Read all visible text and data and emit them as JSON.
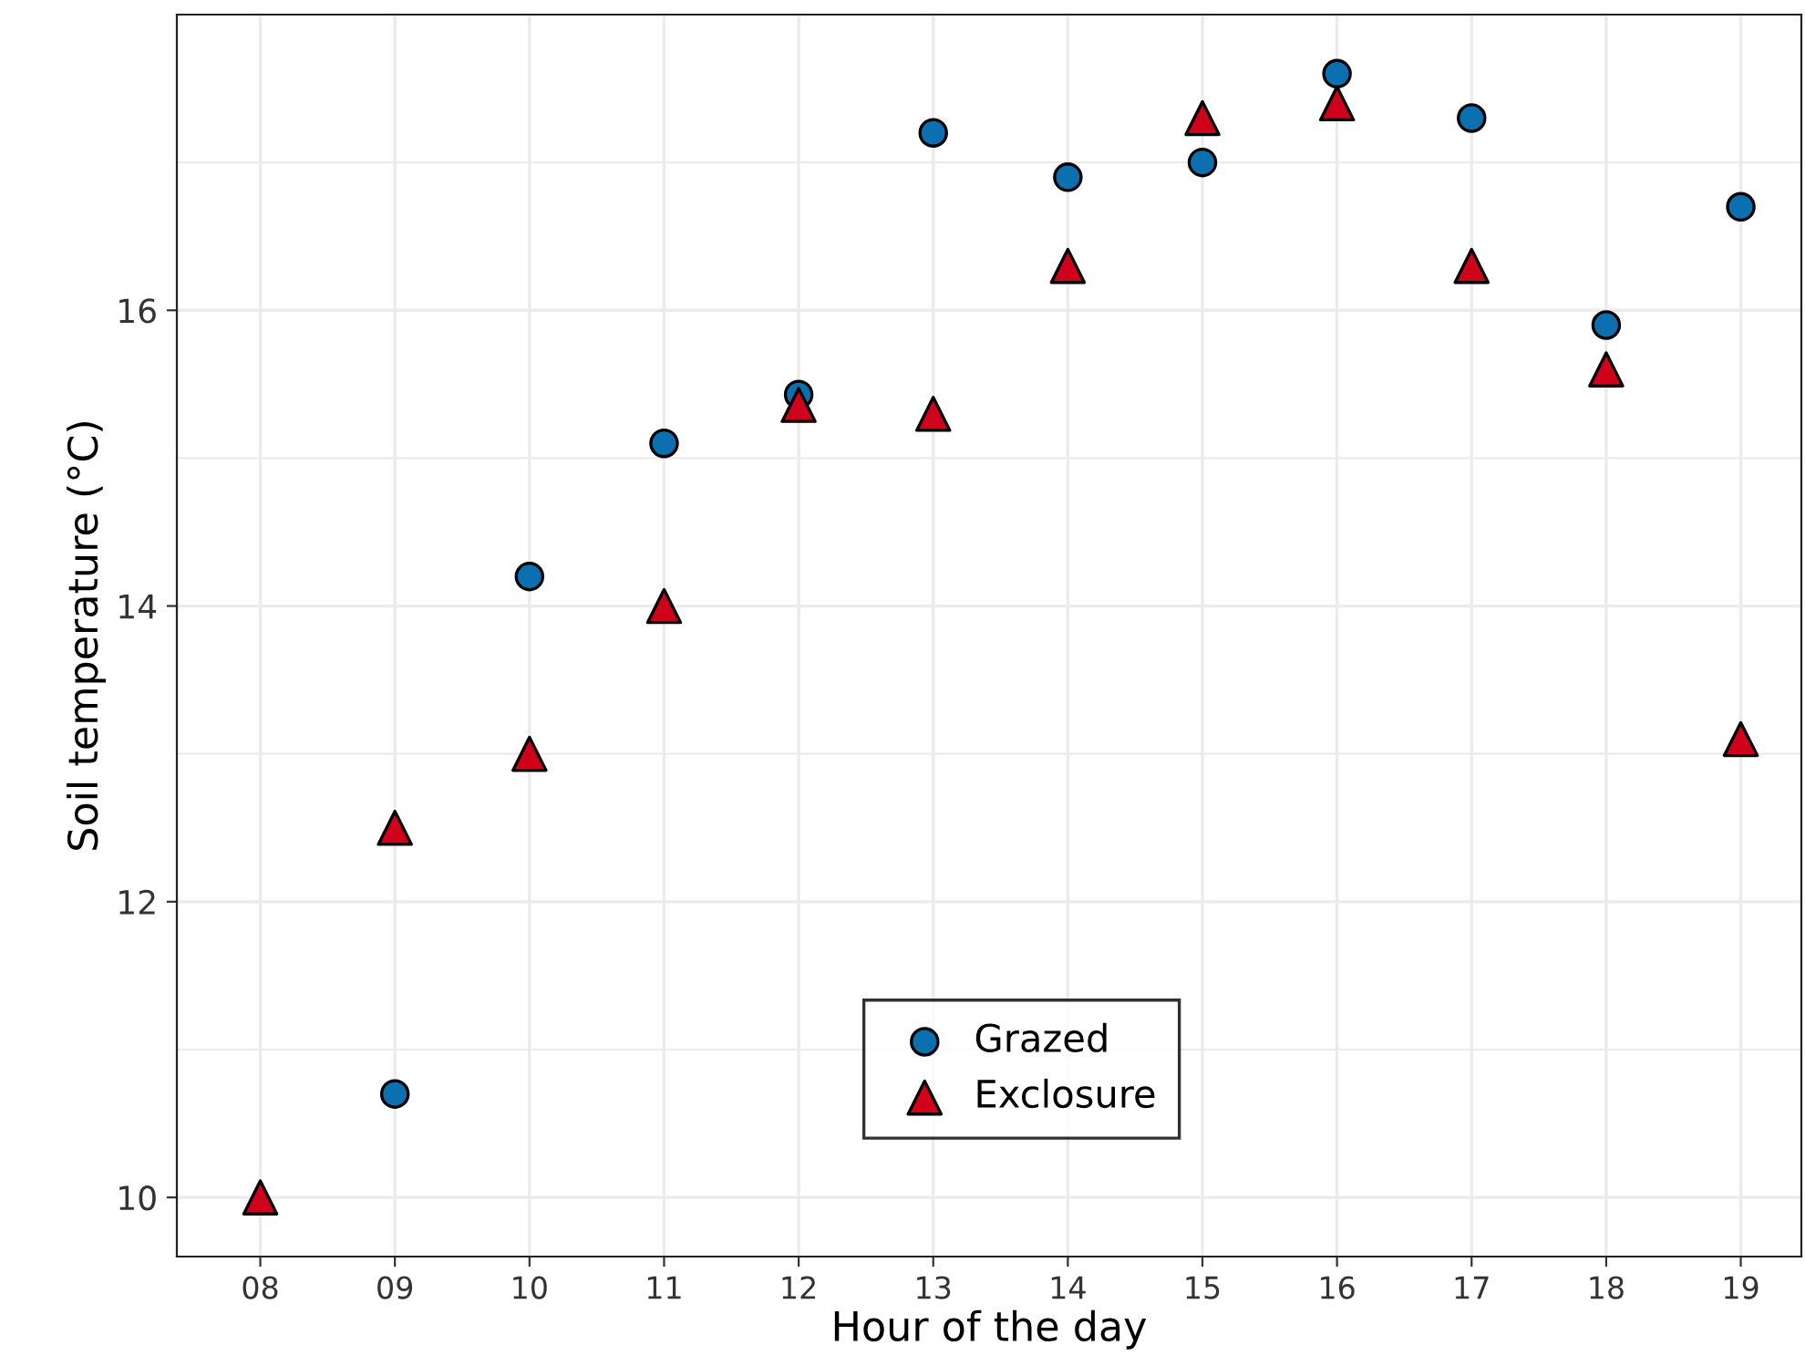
{
  "chart_data": {
    "type": "scatter",
    "xlabel": "Hour of the day",
    "ylabel": "Soil temperature (°C)",
    "categories": [
      "08",
      "09",
      "10",
      "11",
      "12",
      "13",
      "14",
      "15",
      "16",
      "17",
      "18",
      "19"
    ],
    "series": [
      {
        "name": "Grazed",
        "color": "#0b6fb0",
        "marker": "circle",
        "values": [
          null,
          10.7,
          14.2,
          15.1,
          15.43,
          17.2,
          16.9,
          17.0,
          17.6,
          17.3,
          15.9,
          16.7
        ]
      },
      {
        "name": "Exclosure",
        "color": "#d0021b",
        "marker": "triangle",
        "values": [
          10.0,
          12.5,
          13.0,
          14.0,
          15.36,
          15.3,
          16.3,
          17.3,
          17.4,
          16.3,
          15.6,
          13.1
        ]
      }
    ],
    "ylim": [
      9.6,
      18.0
    ],
    "yticks": [
      10,
      12,
      14,
      16
    ],
    "grid": true,
    "legend": "bottom"
  }
}
